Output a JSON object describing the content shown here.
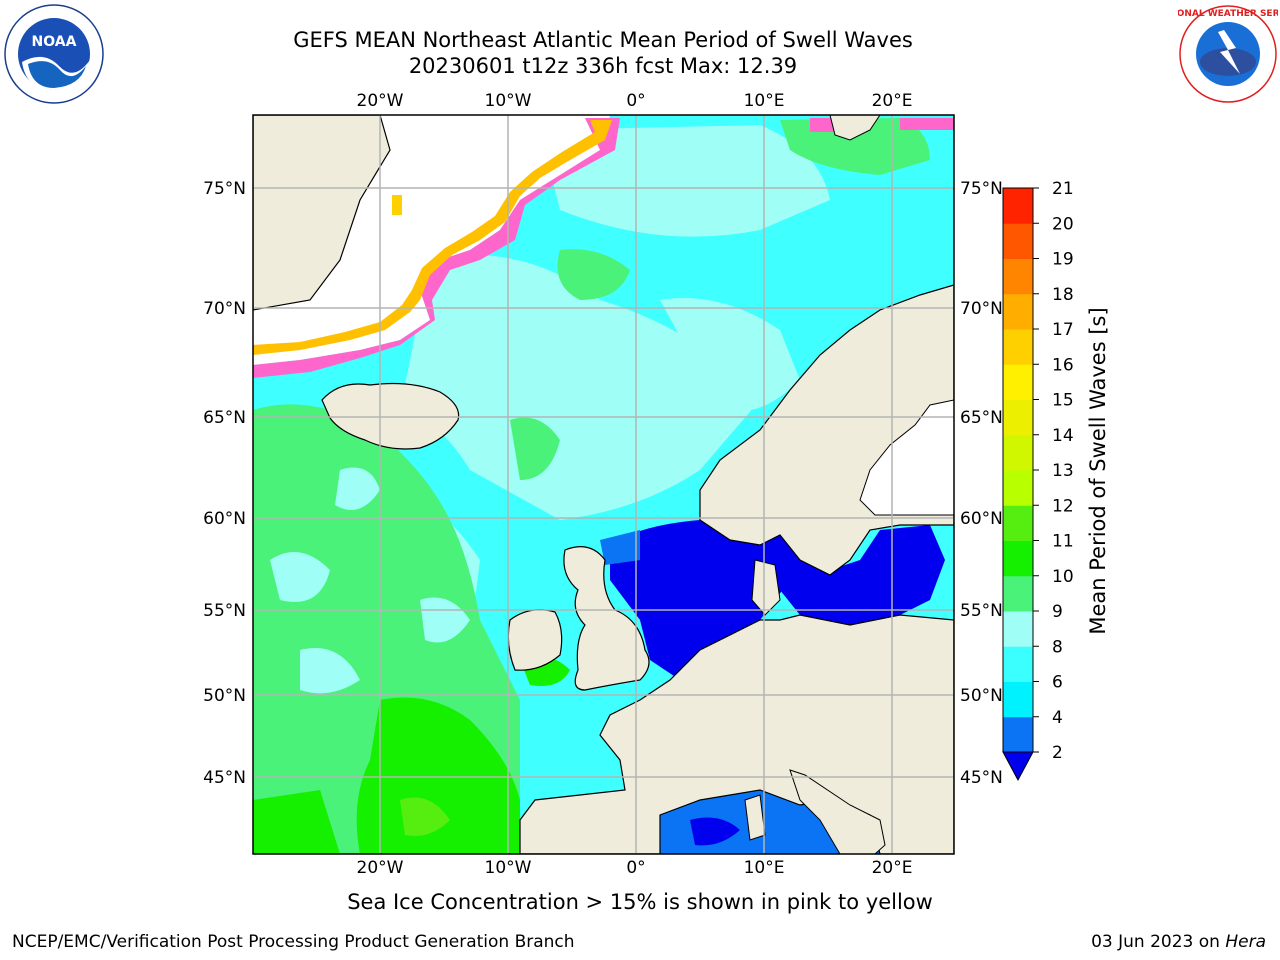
{
  "title": {
    "line1": "GEFS MEAN Northeast Atlantic Mean Period of Swell Waves",
    "line2": "20230601 t12z 336h fcst   Max: 12.39"
  },
  "map": {
    "lon_labels": [
      "20°W",
      "10°W",
      "0°",
      "10°E",
      "20°E"
    ],
    "lat_labels": [
      "75°N",
      "70°N",
      "65°N",
      "60°N",
      "55°N",
      "50°N",
      "45°N"
    ]
  },
  "colorbar": {
    "label": "Mean Period of Swell Waves [s]",
    "ticks": [
      "2",
      "4",
      "6",
      "8",
      "9",
      "10",
      "11",
      "12",
      "13",
      "14",
      "15",
      "16",
      "17",
      "18",
      "19",
      "20",
      "21"
    ],
    "colors": [
      "#0a74f5",
      "#00f2ff",
      "#3bffff",
      "#9ffff6",
      "#4af27a",
      "#14f000",
      "#55ee10",
      "#b8ff00",
      "#d0f700",
      "#ecf000",
      "#fff000",
      "#ffd000",
      "#ffae00",
      "#ff8500",
      "#ff5600",
      "#ff2300"
    ],
    "extend_color": "#0000ee"
  },
  "colors": {
    "land": "#efecdc",
    "ocean_swell": "#40ffff",
    "grid": "#b4b4b4"
  },
  "note": "Sea Ice Concentration > 15% is shown in pink to yellow",
  "footer": {
    "left": "NCEP/EMC/Verification Post Processing Product Generation Branch",
    "right_date": "03 Jun 2023 on ",
    "right_host": "Hera"
  },
  "logos": {
    "noaa": "NOAA",
    "nws": "NATIONAL WEATHER SERVICE"
  }
}
